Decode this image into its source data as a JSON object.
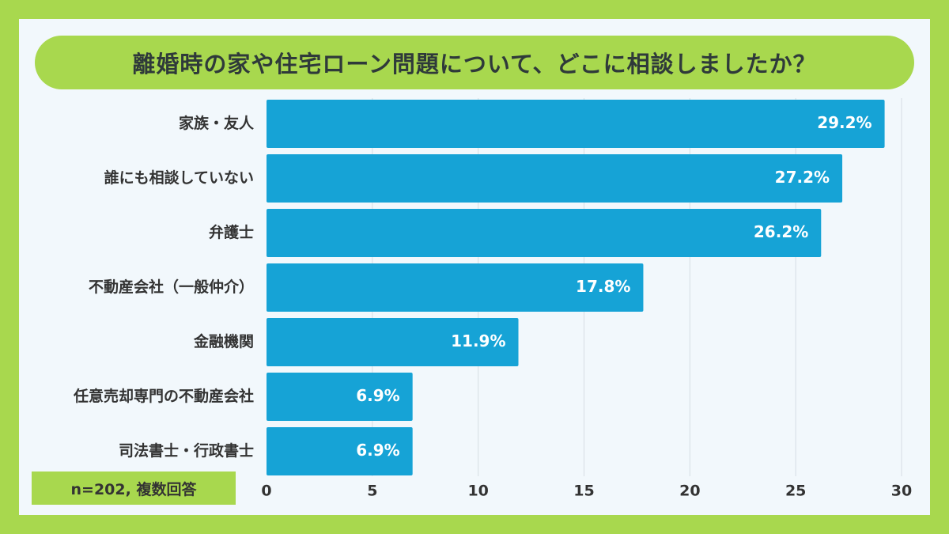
{
  "colors": {
    "background": "#a8d84e",
    "card": "#f2f8fc",
    "bar": "#16a3d6",
    "grid": "#d6dde3"
  },
  "title": "離婚時の家や住宅ローン問題について、どこに相談しましたか？",
  "note": "n=202, 複数回答",
  "chart_data": {
    "type": "bar",
    "orientation": "horizontal",
    "title": "離婚時の家や住宅ローン問題について、どこに相談しましたか？",
    "categories": [
      "家族・友人",
      "誰にも相談していない",
      "弁護士",
      "不動産会社（一般仲介）",
      "金融機関",
      "任意売却専門の不動産会社",
      "司法書士・行政書士"
    ],
    "values": [
      29.2,
      27.2,
      26.2,
      17.8,
      11.9,
      6.9,
      6.9
    ],
    "value_labels": [
      "29.2%",
      "27.2%",
      "26.2%",
      "17.8%",
      "11.9%",
      "6.9%",
      "6.9%"
    ],
    "xlim": [
      0,
      30
    ],
    "xticks": [
      0,
      5,
      10,
      15,
      20,
      25,
      30
    ],
    "xlabel": "",
    "ylabel": "",
    "grid": "vertical",
    "legend": "none"
  }
}
